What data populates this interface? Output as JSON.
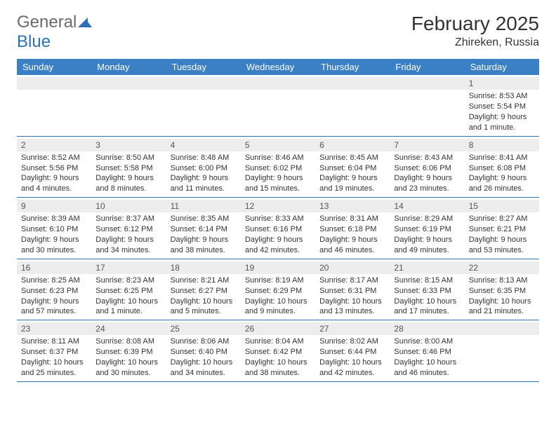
{
  "logo": {
    "part1": "General",
    "part2": "Blue"
  },
  "title": "February 2025",
  "location": "Zhireken, Russia",
  "header_bg": "#3b7fc4",
  "row_border": "#2a71b8",
  "daynum_bg": "#ededed",
  "weekdays": [
    "Sunday",
    "Monday",
    "Tuesday",
    "Wednesday",
    "Thursday",
    "Friday",
    "Saturday"
  ],
  "weeks": [
    [
      {
        "n": "",
        "sr": "",
        "ss": "",
        "dl": ""
      },
      {
        "n": "",
        "sr": "",
        "ss": "",
        "dl": ""
      },
      {
        "n": "",
        "sr": "",
        "ss": "",
        "dl": ""
      },
      {
        "n": "",
        "sr": "",
        "ss": "",
        "dl": ""
      },
      {
        "n": "",
        "sr": "",
        "ss": "",
        "dl": ""
      },
      {
        "n": "",
        "sr": "",
        "ss": "",
        "dl": ""
      },
      {
        "n": "1",
        "sr": "Sunrise: 8:53 AM",
        "ss": "Sunset: 5:54 PM",
        "dl": "Daylight: 9 hours and 1 minute."
      }
    ],
    [
      {
        "n": "2",
        "sr": "Sunrise: 8:52 AM",
        "ss": "Sunset: 5:56 PM",
        "dl": "Daylight: 9 hours and 4 minutes."
      },
      {
        "n": "3",
        "sr": "Sunrise: 8:50 AM",
        "ss": "Sunset: 5:58 PM",
        "dl": "Daylight: 9 hours and 8 minutes."
      },
      {
        "n": "4",
        "sr": "Sunrise: 8:48 AM",
        "ss": "Sunset: 6:00 PM",
        "dl": "Daylight: 9 hours and 11 minutes."
      },
      {
        "n": "5",
        "sr": "Sunrise: 8:46 AM",
        "ss": "Sunset: 6:02 PM",
        "dl": "Daylight: 9 hours and 15 minutes."
      },
      {
        "n": "6",
        "sr": "Sunrise: 8:45 AM",
        "ss": "Sunset: 6:04 PM",
        "dl": "Daylight: 9 hours and 19 minutes."
      },
      {
        "n": "7",
        "sr": "Sunrise: 8:43 AM",
        "ss": "Sunset: 6:06 PM",
        "dl": "Daylight: 9 hours and 23 minutes."
      },
      {
        "n": "8",
        "sr": "Sunrise: 8:41 AM",
        "ss": "Sunset: 6:08 PM",
        "dl": "Daylight: 9 hours and 26 minutes."
      }
    ],
    [
      {
        "n": "9",
        "sr": "Sunrise: 8:39 AM",
        "ss": "Sunset: 6:10 PM",
        "dl": "Daylight: 9 hours and 30 minutes."
      },
      {
        "n": "10",
        "sr": "Sunrise: 8:37 AM",
        "ss": "Sunset: 6:12 PM",
        "dl": "Daylight: 9 hours and 34 minutes."
      },
      {
        "n": "11",
        "sr": "Sunrise: 8:35 AM",
        "ss": "Sunset: 6:14 PM",
        "dl": "Daylight: 9 hours and 38 minutes."
      },
      {
        "n": "12",
        "sr": "Sunrise: 8:33 AM",
        "ss": "Sunset: 6:16 PM",
        "dl": "Daylight: 9 hours and 42 minutes."
      },
      {
        "n": "13",
        "sr": "Sunrise: 8:31 AM",
        "ss": "Sunset: 6:18 PM",
        "dl": "Daylight: 9 hours and 46 minutes."
      },
      {
        "n": "14",
        "sr": "Sunrise: 8:29 AM",
        "ss": "Sunset: 6:19 PM",
        "dl": "Daylight: 9 hours and 49 minutes."
      },
      {
        "n": "15",
        "sr": "Sunrise: 8:27 AM",
        "ss": "Sunset: 6:21 PM",
        "dl": "Daylight: 9 hours and 53 minutes."
      }
    ],
    [
      {
        "n": "16",
        "sr": "Sunrise: 8:25 AM",
        "ss": "Sunset: 6:23 PM",
        "dl": "Daylight: 9 hours and 57 minutes."
      },
      {
        "n": "17",
        "sr": "Sunrise: 8:23 AM",
        "ss": "Sunset: 6:25 PM",
        "dl": "Daylight: 10 hours and 1 minute."
      },
      {
        "n": "18",
        "sr": "Sunrise: 8:21 AM",
        "ss": "Sunset: 6:27 PM",
        "dl": "Daylight: 10 hours and 5 minutes."
      },
      {
        "n": "19",
        "sr": "Sunrise: 8:19 AM",
        "ss": "Sunset: 6:29 PM",
        "dl": "Daylight: 10 hours and 9 minutes."
      },
      {
        "n": "20",
        "sr": "Sunrise: 8:17 AM",
        "ss": "Sunset: 6:31 PM",
        "dl": "Daylight: 10 hours and 13 minutes."
      },
      {
        "n": "21",
        "sr": "Sunrise: 8:15 AM",
        "ss": "Sunset: 6:33 PM",
        "dl": "Daylight: 10 hours and 17 minutes."
      },
      {
        "n": "22",
        "sr": "Sunrise: 8:13 AM",
        "ss": "Sunset: 6:35 PM",
        "dl": "Daylight: 10 hours and 21 minutes."
      }
    ],
    [
      {
        "n": "23",
        "sr": "Sunrise: 8:11 AM",
        "ss": "Sunset: 6:37 PM",
        "dl": "Daylight: 10 hours and 25 minutes."
      },
      {
        "n": "24",
        "sr": "Sunrise: 8:08 AM",
        "ss": "Sunset: 6:39 PM",
        "dl": "Daylight: 10 hours and 30 minutes."
      },
      {
        "n": "25",
        "sr": "Sunrise: 8:06 AM",
        "ss": "Sunset: 6:40 PM",
        "dl": "Daylight: 10 hours and 34 minutes."
      },
      {
        "n": "26",
        "sr": "Sunrise: 8:04 AM",
        "ss": "Sunset: 6:42 PM",
        "dl": "Daylight: 10 hours and 38 minutes."
      },
      {
        "n": "27",
        "sr": "Sunrise: 8:02 AM",
        "ss": "Sunset: 6:44 PM",
        "dl": "Daylight: 10 hours and 42 minutes."
      },
      {
        "n": "28",
        "sr": "Sunrise: 8:00 AM",
        "ss": "Sunset: 6:46 PM",
        "dl": "Daylight: 10 hours and 46 minutes."
      },
      {
        "n": "",
        "sr": "",
        "ss": "",
        "dl": ""
      }
    ]
  ]
}
